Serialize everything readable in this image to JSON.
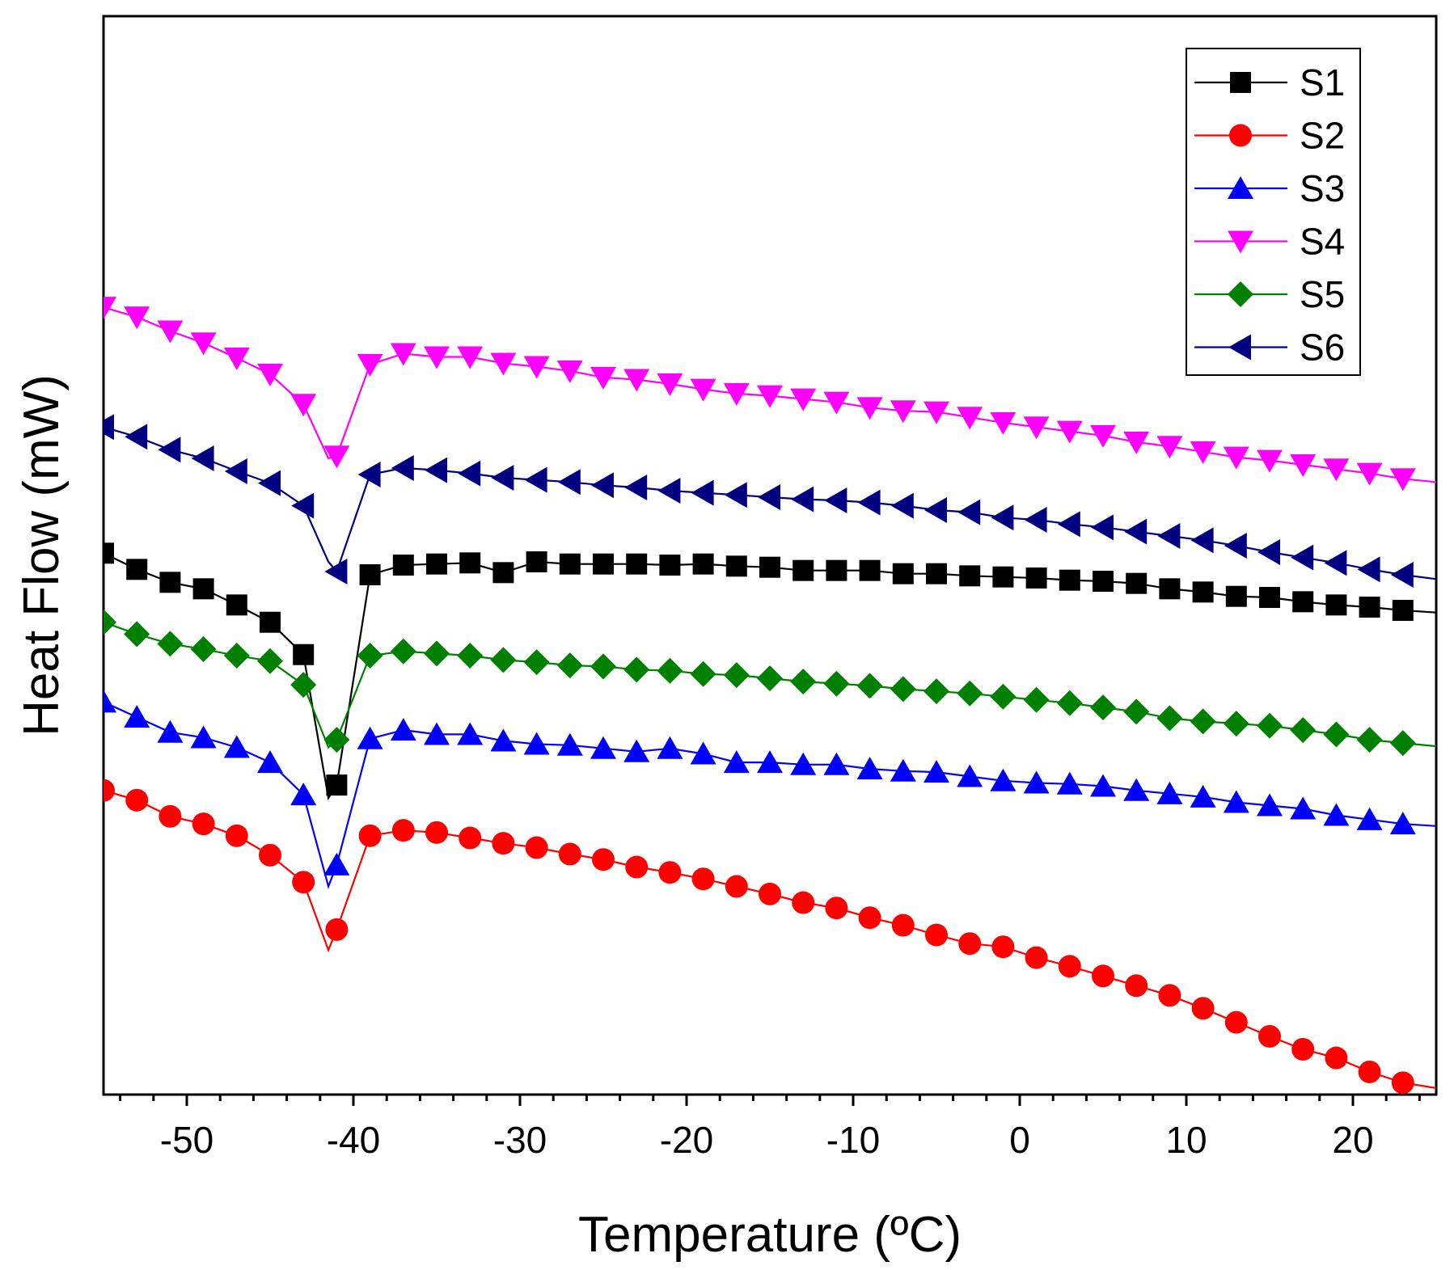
{
  "chart_data": {
    "type": "line",
    "title": "",
    "xlabel": "Temperature (ºC)",
    "ylabel": "Heat Flow (mW)",
    "xlim": [
      -55,
      25
    ],
    "ylim": [
      0,
      100
    ],
    "y_ticks_shown": false,
    "x_ticks": [
      -50,
      -40,
      -30,
      -20,
      -10,
      0,
      10,
      20
    ],
    "x_tick_labels": [
      "-50",
      "-40",
      "-30",
      "-20",
      "-10",
      "0",
      "10",
      "20"
    ],
    "legend_position": "top-right",
    "series": [
      {
        "name": "S1",
        "color": "#000000",
        "marker": "square",
        "x": [
          -55,
          -53,
          -51,
          -49,
          -47,
          -45,
          -43,
          -41.5,
          -41,
          -39,
          -37,
          -35,
          -33,
          -31,
          -29,
          -27,
          -25,
          -23,
          -21,
          -19,
          -17,
          -15,
          -13,
          -11,
          -9,
          -7,
          -5,
          -3,
          -1,
          1,
          3,
          5,
          7,
          9,
          11,
          13,
          15,
          17,
          19,
          21,
          23,
          25
        ],
        "y": [
          50.2,
          48.7,
          47.5,
          46.9,
          45.4,
          43.8,
          40.8,
          27.5,
          28.7,
          48.2,
          49.1,
          49.2,
          49.3,
          48.4,
          49.4,
          49.2,
          49.2,
          49.2,
          49.1,
          49.2,
          49.0,
          48.9,
          48.6,
          48.6,
          48.6,
          48.3,
          48.3,
          48.1,
          48.0,
          47.9,
          47.7,
          47.6,
          47.4,
          46.9,
          46.6,
          46.2,
          46.1,
          45.7,
          45.4,
          45.2,
          44.9,
          44.7
        ]
      },
      {
        "name": "S2",
        "color": "#ff0000",
        "marker": "circle",
        "x": [
          -55,
          -53,
          -51,
          -49,
          -47,
          -45,
          -43,
          -41.5,
          -41,
          -39,
          -37,
          -35,
          -33,
          -31,
          -29,
          -27,
          -25,
          -23,
          -21,
          -19,
          -17,
          -15,
          -13,
          -11,
          -9,
          -7,
          -5,
          -3,
          -1,
          1,
          3,
          5,
          7,
          9,
          11,
          13,
          15,
          17,
          19,
          21,
          23,
          25
        ],
        "y": [
          28.2,
          27.3,
          25.8,
          25.1,
          24.0,
          22.2,
          19.7,
          13.4,
          15.3,
          24.0,
          24.5,
          24.3,
          23.8,
          23.3,
          22.9,
          22.3,
          21.8,
          21.1,
          20.6,
          20.0,
          19.3,
          18.6,
          17.8,
          17.3,
          16.4,
          15.7,
          14.8,
          14.0,
          13.7,
          12.7,
          11.9,
          11.0,
          10.1,
          9.2,
          8.0,
          6.7,
          5.4,
          4.2,
          3.4,
          2.1,
          1.1,
          0.6
        ]
      },
      {
        "name": "S3",
        "color": "#0000ff",
        "marker": "triangle-up",
        "x": [
          -55,
          -53,
          -51,
          -49,
          -47,
          -45,
          -43,
          -41.5,
          -41,
          -39,
          -37,
          -35,
          -33,
          -31,
          -29,
          -27,
          -25,
          -23,
          -21,
          -19,
          -17,
          -15,
          -13,
          -11,
          -9,
          -7,
          -5,
          -3,
          -1,
          1,
          3,
          5,
          7,
          9,
          11,
          13,
          15,
          17,
          19,
          21,
          23,
          25
        ],
        "y": [
          36.4,
          35.0,
          33.6,
          33.1,
          32.2,
          30.8,
          27.8,
          19.3,
          21.3,
          33.0,
          33.8,
          33.4,
          33.4,
          32.8,
          32.5,
          32.4,
          32.1,
          31.8,
          32.1,
          31.6,
          30.8,
          30.8,
          30.6,
          30.6,
          30.2,
          30.0,
          29.9,
          29.5,
          29.1,
          28.9,
          28.8,
          28.6,
          28.2,
          27.9,
          27.6,
          27.1,
          26.8,
          26.5,
          25.9,
          25.5,
          25.1,
          24.9
        ]
      },
      {
        "name": "S4",
        "color": "#ff00ff",
        "marker": "triangle-down",
        "x": [
          -55,
          -53,
          -51,
          -49,
          -47,
          -45,
          -43,
          -41.5,
          -41,
          -39,
          -37,
          -35,
          -33,
          -31,
          -29,
          -27,
          -25,
          -23,
          -21,
          -19,
          -17,
          -15,
          -13,
          -11,
          -9,
          -7,
          -5,
          -3,
          -1,
          1,
          3,
          5,
          7,
          9,
          11,
          13,
          15,
          17,
          19,
          21,
          23,
          25
        ],
        "y": [
          73.0,
          72.1,
          70.8,
          69.7,
          68.3,
          66.8,
          64.0,
          59.0,
          59.2,
          67.7,
          68.7,
          68.4,
          68.4,
          67.8,
          67.5,
          67.1,
          66.5,
          66.3,
          65.9,
          65.4,
          65.0,
          64.8,
          64.5,
          64.2,
          63.7,
          63.4,
          63.3,
          62.8,
          62.3,
          61.9,
          61.5,
          61.1,
          60.5,
          60.1,
          59.6,
          59.1,
          58.8,
          58.4,
          58.0,
          57.6,
          57.1,
          56.8
        ]
      },
      {
        "name": "S5",
        "color": "#008000",
        "marker": "diamond",
        "x": [
          -55,
          -53,
          -51,
          -49,
          -47,
          -45,
          -43,
          -41.5,
          -41,
          -39,
          -37,
          -35,
          -33,
          -31,
          -29,
          -27,
          -25,
          -23,
          -21,
          -19,
          -17,
          -15,
          -13,
          -11,
          -9,
          -7,
          -5,
          -3,
          -1,
          1,
          3,
          5,
          7,
          9,
          11,
          13,
          15,
          17,
          19,
          21,
          23,
          25
        ],
        "y": [
          43.8,
          42.7,
          41.8,
          41.3,
          40.7,
          40.2,
          38.0,
          32.2,
          32.9,
          40.7,
          41.1,
          40.9,
          40.7,
          40.3,
          40.1,
          39.8,
          39.7,
          39.4,
          39.3,
          39.0,
          38.9,
          38.6,
          38.3,
          38.1,
          37.9,
          37.6,
          37.4,
          37.2,
          36.9,
          36.6,
          36.3,
          35.9,
          35.5,
          34.9,
          34.6,
          34.4,
          34.2,
          33.8,
          33.4,
          32.9,
          32.6,
          32.3
        ]
      },
      {
        "name": "S6",
        "color": "#000080",
        "marker": "triangle-left",
        "x": [
          -55,
          -53,
          -51,
          -49,
          -47,
          -45,
          -43,
          -41.5,
          -41,
          -39,
          -37,
          -35,
          -33,
          -31,
          -29,
          -27,
          -25,
          -23,
          -21,
          -19,
          -17,
          -15,
          -13,
          -11,
          -9,
          -7,
          -5,
          -3,
          -1,
          1,
          3,
          5,
          7,
          9,
          11,
          13,
          15,
          17,
          19,
          21,
          23,
          25
        ],
        "y": [
          61.9,
          61.0,
          59.8,
          59.0,
          57.8,
          56.7,
          54.6,
          49.4,
          48.5,
          57.5,
          58.1,
          57.9,
          57.6,
          57.2,
          57.0,
          56.8,
          56.5,
          56.3,
          56.0,
          55.8,
          55.6,
          55.4,
          55.2,
          55.1,
          54.9,
          54.6,
          54.2,
          54.0,
          53.5,
          53.3,
          52.9,
          52.6,
          52.2,
          51.8,
          51.4,
          50.9,
          50.3,
          49.8,
          49.3,
          48.7,
          48.2,
          47.8
        ]
      }
    ]
  }
}
